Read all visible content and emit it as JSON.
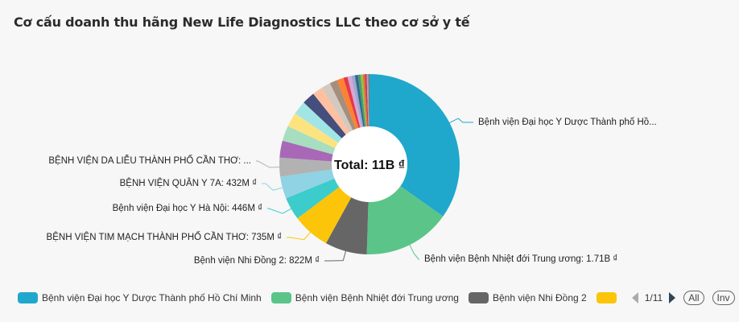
{
  "title": "Cơ cấu doanh thu hãng New Life Diagnostics LLC theo cơ sở y tế",
  "center_label": "Total: 11B ₫",
  "legend": {
    "items": [
      {
        "label": "Bệnh viện Đại học Y Dược Thành phố Hồ Chí Minh",
        "color": "#1fa8cb"
      },
      {
        "label": "Bệnh viện Bệnh Nhiệt đới Trung ương",
        "color": "#5bc489"
      },
      {
        "label": "Bệnh viện Nhi Đồng 2",
        "color": "#666666"
      },
      {
        "label": "",
        "color": "#fcc509"
      }
    ],
    "page": "1/11",
    "all_label": "All",
    "inv_label": "Inv"
  },
  "chart_data": {
    "type": "pie",
    "donut": true,
    "title": "Cơ cấu doanh thu hãng New Life Diagnostics LLC theo cơ sở y tế",
    "center_text": "Total: 11B ₫",
    "total": 11000000000,
    "unit": "₫",
    "legend_position": "bottom",
    "slices": [
      {
        "label": "Bệnh viện Đại học Y Dược Thành phố Hồ Chí Minh",
        "value": 3800000000,
        "display": "Bệnh viện Đại học Y Dược Thành phố Hồ...",
        "color": "#1fa8cb"
      },
      {
        "label": "Bệnh viện Bệnh Nhiệt đới Trung ương",
        "value": 1710000000,
        "display": "Bệnh viện Bệnh Nhiệt đới Trung ương: 1.71B ₫",
        "color": "#5bc489"
      },
      {
        "label": "Bệnh viện Nhi Đồng 2",
        "value": 822000000,
        "display": "Bệnh viện Nhi Đồng 2: 822M ₫",
        "color": "#666666"
      },
      {
        "label": "BỆNH VIỆN TIM MẠCH THÀNH PHỐ CẦN THƠ",
        "value": 735000000,
        "display": "BỆNH VIỆN TIM MẠCH THÀNH PHỐ CẦN THƠ: 735M ₫",
        "color": "#fcc509"
      },
      {
        "label": "Bệnh viện Đại học Y Hà Nội",
        "value": 446000000,
        "display": "Bệnh viện Đại học Y Hà Nội: 446M ₫",
        "color": "#3ccccb"
      },
      {
        "label": "BỆNH VIỆN QUÂN Y 7A",
        "value": 432000000,
        "display": "BỆNH VIỆN QUÂN Y 7A: 432M ₫",
        "color": "#8fd3e4"
      },
      {
        "label": "BỆNH VIỆN DA LIỄU THÀNH PHỐ CẦN THƠ",
        "value": 370000000,
        "display": "BỆNH VIỆN DA LIỄU THÀNH PHỐ CẦN THƠ: ...",
        "color": "#b2b2b2"
      },
      {
        "label": "",
        "value": 330000000,
        "color": "#a868b7"
      },
      {
        "label": "",
        "value": 300000000,
        "color": "#a7dec0"
      },
      {
        "label": "",
        "value": 280000000,
        "color": "#fde380"
      },
      {
        "label": "",
        "value": 270000000,
        "color": "#a1e6e5"
      },
      {
        "label": "",
        "value": 250000000,
        "color": "#454e7c"
      },
      {
        "label": "",
        "value": 200000000,
        "color": "#fec0a0"
      },
      {
        "label": "",
        "value": 180000000,
        "color": "#d3c9c0"
      },
      {
        "label": "",
        "value": 150000000,
        "color": "#a38f7c"
      },
      {
        "label": "",
        "value": 130000000,
        "color": "#fe8133"
      },
      {
        "label": "",
        "value": 80000000,
        "color": "#e3394a"
      },
      {
        "label": "",
        "value": 75000000,
        "color": "#d3a8d8"
      },
      {
        "label": "",
        "value": 70000000,
        "color": "#a3a6d0"
      },
      {
        "label": "",
        "value": 60000000,
        "color": "#2c6a8f"
      },
      {
        "label": "",
        "value": 50000000,
        "color": "#4a9a6a"
      },
      {
        "label": "",
        "value": 45000000,
        "color": "#8dc04f"
      },
      {
        "label": "",
        "value": 40000000,
        "color": "#e96f2c"
      },
      {
        "label": "",
        "value": 35000000,
        "color": "#c73649"
      },
      {
        "label": "",
        "value": 30000000,
        "color": "#b4a0c8"
      },
      {
        "label": "",
        "value": 25000000,
        "color": "#7b7b7b"
      }
    ]
  }
}
